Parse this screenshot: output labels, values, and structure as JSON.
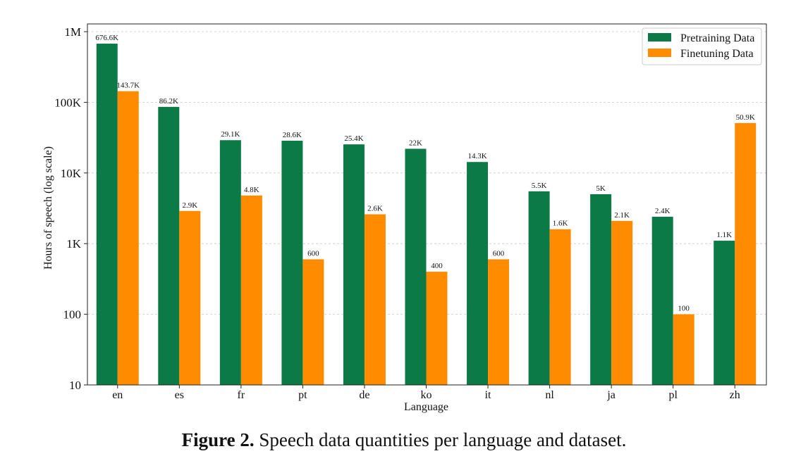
{
  "chart_data": {
    "type": "bar",
    "categories": [
      "en",
      "es",
      "fr",
      "pt",
      "de",
      "ko",
      "it",
      "nl",
      "ja",
      "pl",
      "zh"
    ],
    "series": [
      {
        "name": "Pretraining Data",
        "color": "#0b7a47",
        "values": [
          676600,
          86200,
          29100,
          28600,
          25400,
          22000,
          14300,
          5500,
          5000,
          2400,
          1100
        ],
        "labels": [
          "676.6K",
          "86.2K",
          "29.1K",
          "28.6K",
          "25.4K",
          "22K",
          "14.3K",
          "5.5K",
          "5K",
          "2.4K",
          "1.1K"
        ]
      },
      {
        "name": "Finetuning Data",
        "color": "#ff8c00",
        "values": [
          143700,
          2900,
          4800,
          600,
          2600,
          400,
          600,
          1600,
          2100,
          100,
          50900
        ],
        "labels": [
          "143.7K",
          "2.9K",
          "4.8K",
          "600",
          "2.6K",
          "400",
          "600",
          "1.6K",
          "2.1K",
          "100",
          "50.9K"
        ]
      }
    ],
    "title": "",
    "xlabel": "Language",
    "ylabel": "Hours of speech (log scale)",
    "yscale": "log",
    "ylim": [
      10,
      1000000
    ],
    "yticks": [
      10,
      100,
      1000,
      10000,
      100000,
      1000000
    ],
    "ytick_labels": [
      "10",
      "100",
      "1K",
      "10K",
      "100K",
      "1M"
    ],
    "grid": "horizontal dashed",
    "legend_position": "top-right"
  },
  "caption": {
    "label": "Figure 2.",
    "text": " Speech data quantities per language and dataset."
  }
}
